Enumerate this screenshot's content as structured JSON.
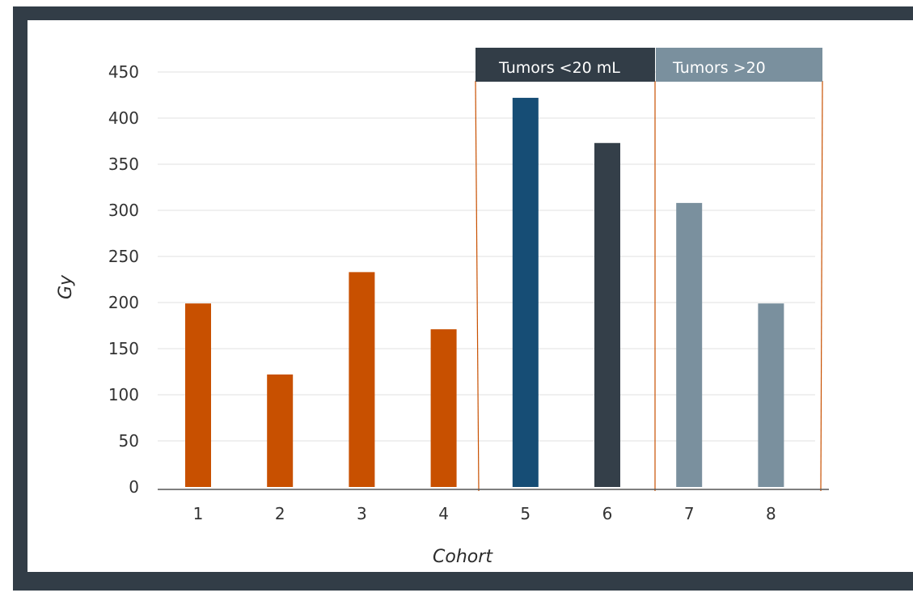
{
  "chart_data": {
    "type": "bar",
    "xlabel": "Cohort",
    "ylabel": "Gy",
    "ylim": [
      0,
      450
    ],
    "yticks": [
      0,
      50,
      100,
      150,
      200,
      250,
      300,
      350,
      400,
      450
    ],
    "categories": [
      "1",
      "2",
      "3",
      "4",
      "5",
      "6",
      "7",
      "8"
    ],
    "values": [
      199,
      122,
      233,
      171,
      422,
      373,
      308,
      199
    ],
    "bar_colors": [
      "#c85000",
      "#c85000",
      "#c85000",
      "#c85000",
      "#164d75",
      "#343f49",
      "#7a909e",
      "#7a909e"
    ],
    "groups": [
      {
        "label": "Tumors <20 mL",
        "from_index": 4,
        "to_index": 5,
        "color": "#323d47"
      },
      {
        "label": "Tumors >20",
        "from_index": 6,
        "to_index": 7,
        "color": "#7a909e"
      }
    ],
    "grid": true,
    "gridline_color": "#e2e2e2",
    "divider_color": "#c85000"
  }
}
